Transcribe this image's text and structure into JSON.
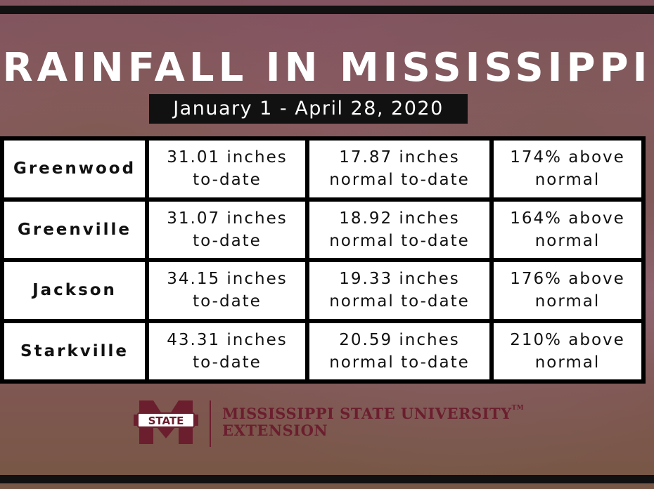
{
  "title": "RAINFALL IN MISSISSIPPI",
  "date_range": "January 1 - April 28, 2020",
  "rows": [
    {
      "city": "Greenwood",
      "to_date_line1": "31.01 inches",
      "to_date_line2": "to-date",
      "normal_line1": "17.87 inches",
      "normal_line2": "normal to-date",
      "pct_line1": "174% above",
      "pct_line2": "normal"
    },
    {
      "city": "Greenville",
      "to_date_line1": "31.07 inches",
      "to_date_line2": "to-date",
      "normal_line1": "18.92 inches",
      "normal_line2": "normal to-date",
      "pct_line1": "164% above",
      "pct_line2": "normal"
    },
    {
      "city": "Jackson",
      "to_date_line1": "34.15 inches",
      "to_date_line2": "to-date",
      "normal_line1": "19.33 inches",
      "normal_line2": "normal to-date",
      "pct_line1": "176% above",
      "pct_line2": "normal"
    },
    {
      "city": "Starkville",
      "to_date_line1": "43.31 inches",
      "to_date_line2": "to-date",
      "normal_line1": "20.59 inches",
      "normal_line2": "normal to-date",
      "pct_line1": "210% above",
      "pct_line2": "normal"
    }
  ],
  "logo": {
    "badge_text": "STATE",
    "line1": "MISSISSIPPI STATE UNIVERSITY",
    "tm": "TM",
    "line2": "EXTENSION",
    "color": "#6b1e2e"
  }
}
